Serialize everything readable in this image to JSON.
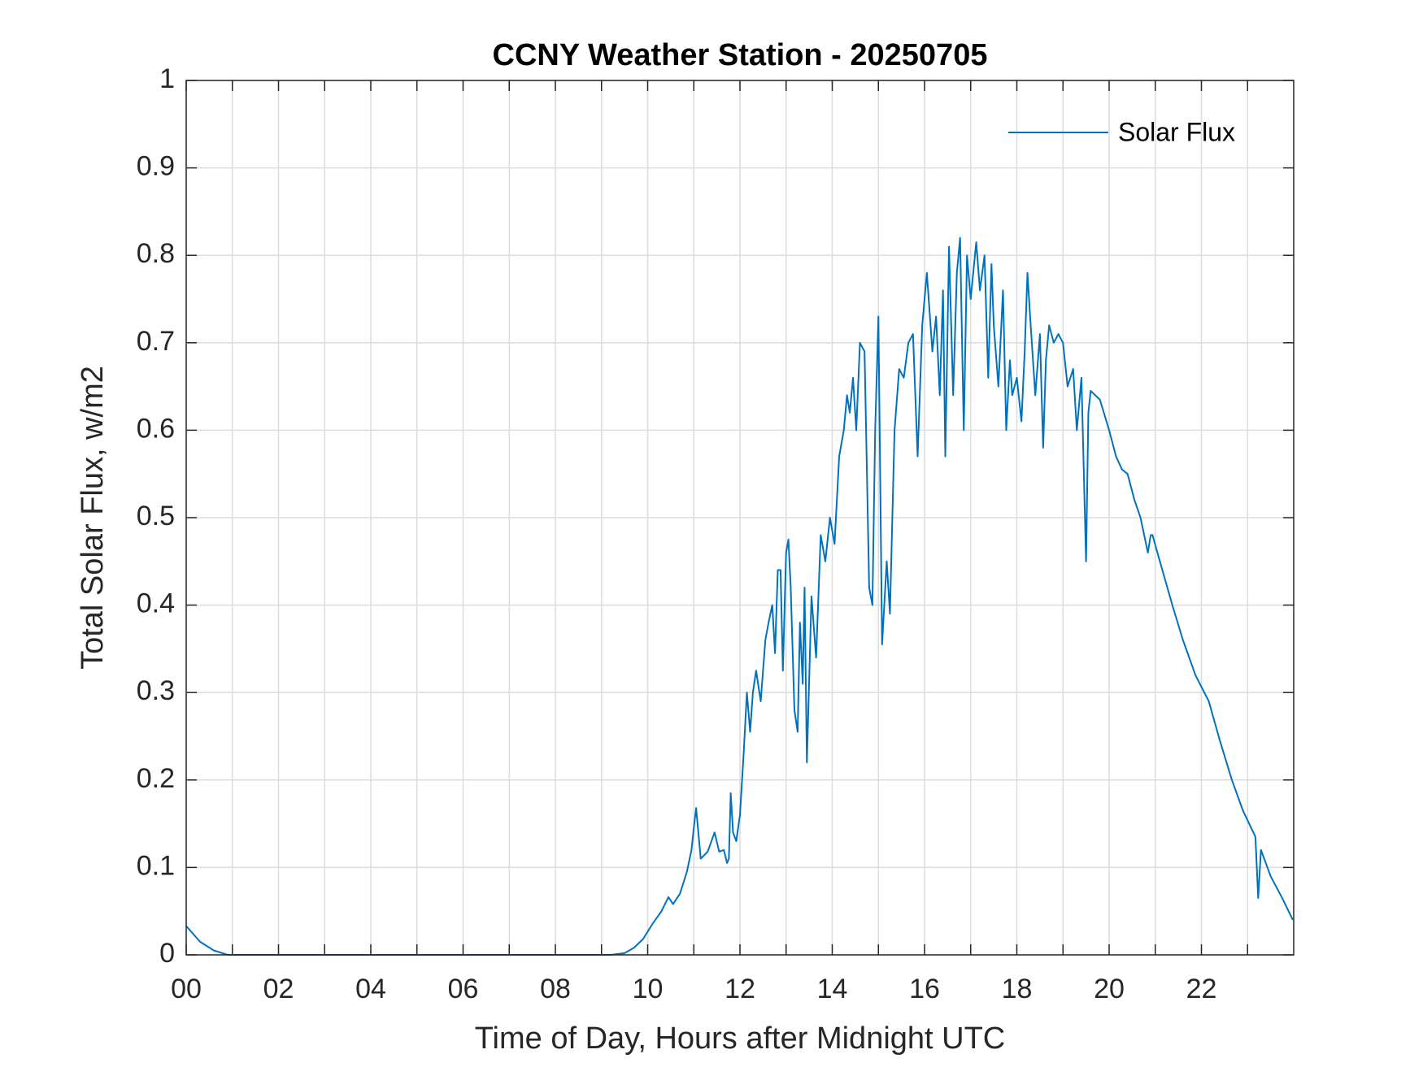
{
  "chart_data": {
    "type": "line",
    "title": "CCNY Weather Station - 20250705",
    "x_label": "Time of Day, Hours after Midnight UTC",
    "y_label": "Total Solar Flux, w/m2",
    "xlim": [
      0,
      24
    ],
    "ylim": [
      0,
      1
    ],
    "xticks": [
      {
        "value": 0,
        "label": "00"
      },
      {
        "value": 1,
        "label": null
      },
      {
        "value": 2,
        "label": "02"
      },
      {
        "value": 3,
        "label": null
      },
      {
        "value": 4,
        "label": "04"
      },
      {
        "value": 5,
        "label": null
      },
      {
        "value": 6,
        "label": "06"
      },
      {
        "value": 7,
        "label": null
      },
      {
        "value": 8,
        "label": "08"
      },
      {
        "value": 9,
        "label": null
      },
      {
        "value": 10,
        "label": "10"
      },
      {
        "value": 11,
        "label": null
      },
      {
        "value": 12,
        "label": "12"
      },
      {
        "value": 13,
        "label": null
      },
      {
        "value": 14,
        "label": "14"
      },
      {
        "value": 15,
        "label": null
      },
      {
        "value": 16,
        "label": "16"
      },
      {
        "value": 17,
        "label": null
      },
      {
        "value": 18,
        "label": "18"
      },
      {
        "value": 19,
        "label": null
      },
      {
        "value": 20,
        "label": "20"
      },
      {
        "value": 21,
        "label": null
      },
      {
        "value": 22,
        "label": "22"
      },
      {
        "value": 23,
        "label": null
      }
    ],
    "yticks": [
      0,
      0.1,
      0.2,
      0.3,
      0.4,
      0.5,
      0.6,
      0.7,
      0.8,
      0.9,
      1
    ],
    "grid": true,
    "legend": "upper-right",
    "x": [
      0,
      0.3,
      0.6,
      0.9,
      2,
      4,
      6,
      8,
      9.2,
      9.5,
      9.7,
      9.9,
      10.1,
      10.3,
      10.45,
      10.55,
      10.7,
      10.85,
      10.95,
      11.0,
      11.05,
      11.15,
      11.3,
      11.45,
      11.55,
      11.65,
      11.72,
      11.76,
      11.8,
      11.85,
      11.92,
      12.0,
      12.08,
      12.15,
      12.22,
      12.28,
      12.35,
      12.45,
      12.55,
      12.62,
      12.7,
      12.76,
      12.82,
      12.88,
      12.93,
      13.0,
      13.05,
      13.1,
      13.18,
      13.25,
      13.3,
      13.36,
      13.4,
      13.45,
      13.55,
      13.65,
      13.75,
      13.85,
      13.95,
      14.05,
      14.15,
      14.25,
      14.32,
      14.38,
      14.45,
      14.52,
      14.6,
      14.7,
      14.8,
      14.87,
      14.93,
      15.0,
      15.08,
      15.18,
      15.25,
      15.35,
      15.45,
      15.55,
      15.65,
      15.75,
      15.85,
      15.95,
      16.05,
      16.17,
      16.25,
      16.33,
      16.4,
      16.45,
      16.53,
      16.62,
      16.7,
      16.77,
      16.85,
      16.92,
      17.0,
      17.12,
      17.2,
      17.3,
      17.38,
      17.45,
      17.5,
      17.6,
      17.7,
      17.77,
      17.85,
      17.9,
      18.0,
      18.1,
      18.17,
      18.23,
      18.3,
      18.4,
      18.5,
      18.57,
      18.63,
      18.7,
      18.8,
      18.9,
      19.0,
      19.1,
      19.22,
      19.3,
      19.4,
      19.5,
      19.55,
      19.6,
      19.8,
      20.0,
      20.15,
      20.28,
      20.4,
      20.55,
      20.68,
      20.84,
      20.9,
      20.94,
      21.1,
      21.37,
      21.6,
      21.87,
      22.16,
      22.4,
      22.66,
      22.9,
      23.17,
      23.23,
      23.29,
      23.5,
      23.75,
      23.98
    ],
    "series": [
      {
        "name": "Solar Flux",
        "color": "#0072bd",
        "values": [
          0.033,
          0.015,
          0.005,
          0,
          0,
          0,
          0,
          0,
          0,
          0.002,
          0.008,
          0.018,
          0.035,
          0.05,
          0.066,
          0.058,
          0.07,
          0.095,
          0.12,
          0.145,
          0.168,
          0.11,
          0.118,
          0.14,
          0.118,
          0.12,
          0.105,
          0.11,
          0.185,
          0.14,
          0.13,
          0.16,
          0.23,
          0.3,
          0.255,
          0.3,
          0.325,
          0.29,
          0.36,
          0.38,
          0.4,
          0.345,
          0.44,
          0.44,
          0.325,
          0.46,
          0.475,
          0.42,
          0.28,
          0.255,
          0.38,
          0.31,
          0.42,
          0.22,
          0.41,
          0.34,
          0.48,
          0.45,
          0.5,
          0.47,
          0.57,
          0.6,
          0.64,
          0.62,
          0.66,
          0.6,
          0.7,
          0.69,
          0.42,
          0.4,
          0.6,
          0.73,
          0.355,
          0.45,
          0.39,
          0.6,
          0.67,
          0.66,
          0.7,
          0.71,
          0.57,
          0.72,
          0.78,
          0.69,
          0.73,
          0.64,
          0.76,
          0.57,
          0.81,
          0.64,
          0.78,
          0.82,
          0.6,
          0.8,
          0.75,
          0.815,
          0.76,
          0.8,
          0.66,
          0.79,
          0.72,
          0.65,
          0.76,
          0.6,
          0.68,
          0.64,
          0.66,
          0.61,
          0.69,
          0.78,
          0.72,
          0.64,
          0.71,
          0.58,
          0.68,
          0.72,
          0.7,
          0.71,
          0.7,
          0.65,
          0.67,
          0.6,
          0.66,
          0.45,
          0.62,
          0.645,
          0.635,
          0.6,
          0.57,
          0.555,
          0.55,
          0.52,
          0.5,
          0.46,
          0.48,
          0.48,
          0.45,
          0.4,
          0.36,
          0.32,
          0.29,
          0.245,
          0.2,
          0.165,
          0.135,
          0.065,
          0.12,
          0.09,
          0.065,
          0.04
        ]
      }
    ]
  }
}
